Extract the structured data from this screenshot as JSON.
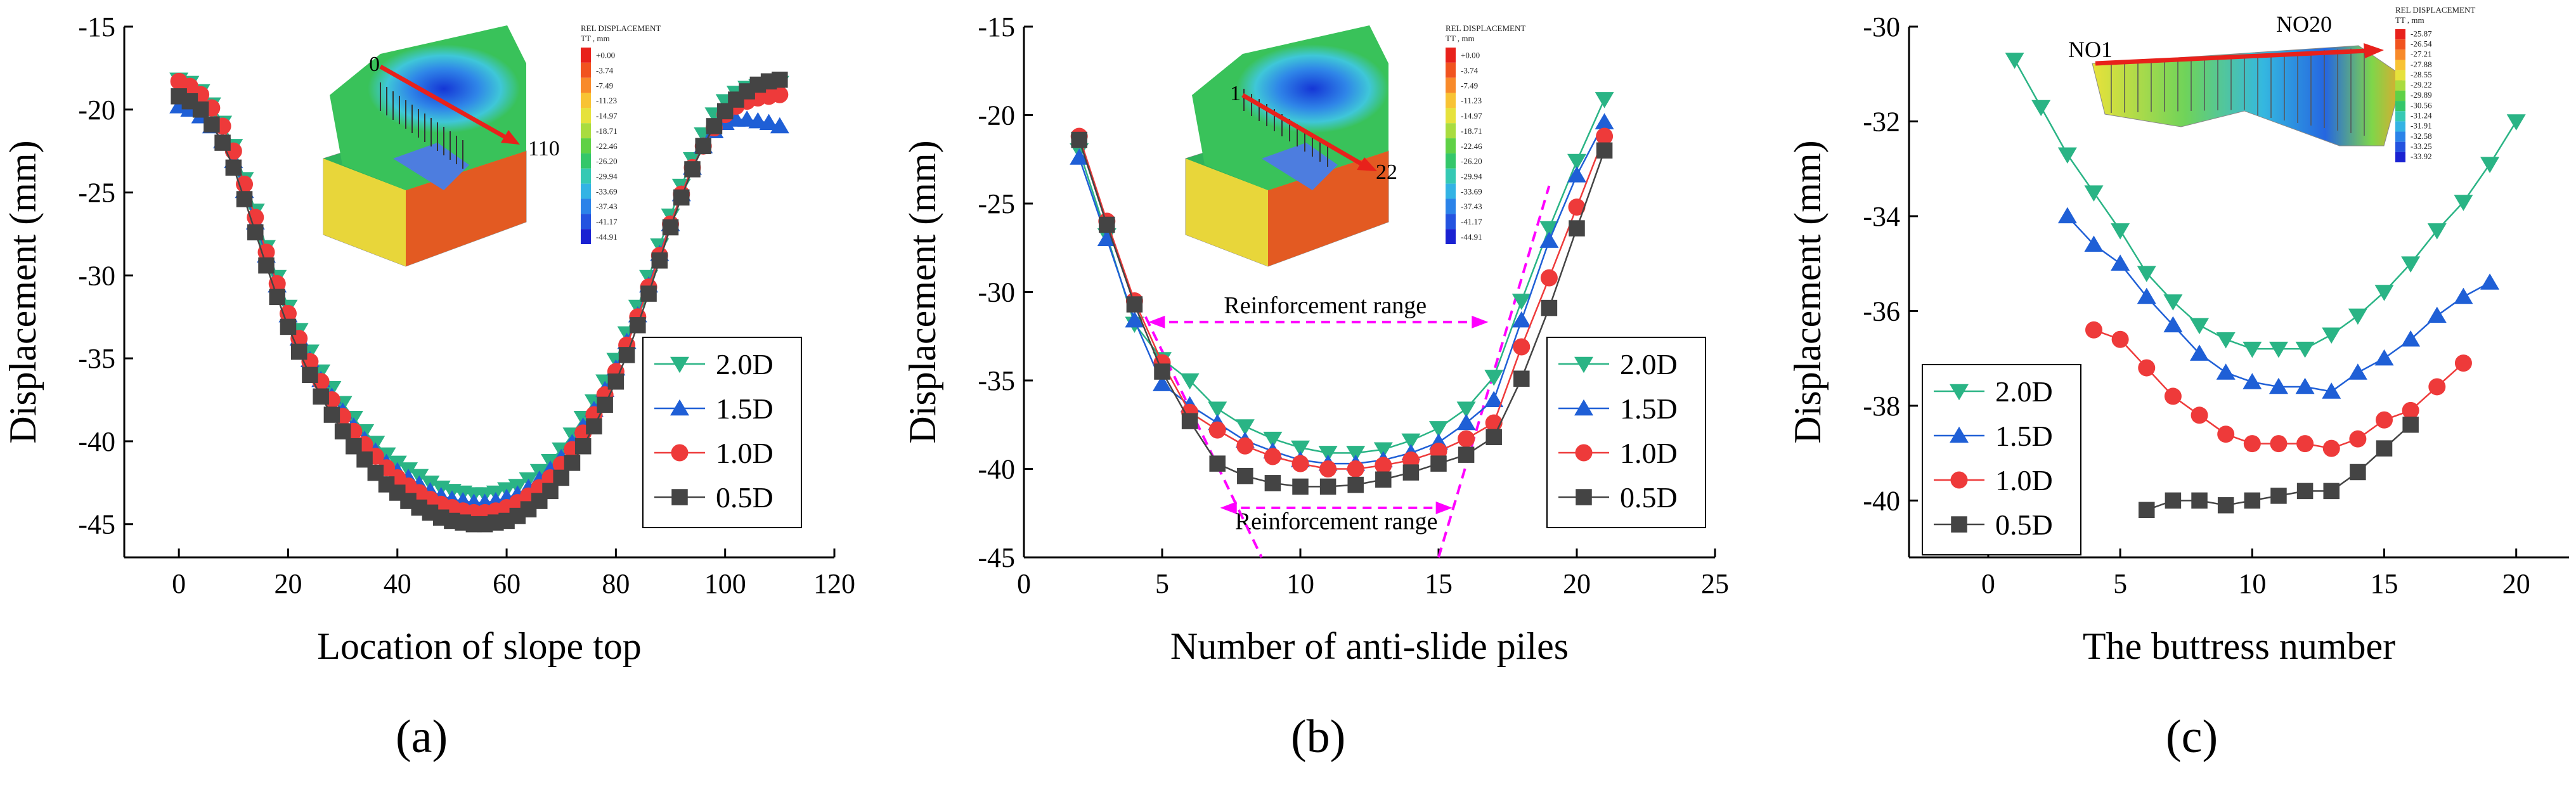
{
  "colors": {
    "s20": "#2ab485",
    "s15": "#1f5fd6",
    "s10": "#ee3a3a",
    "s05": "#444444",
    "magenta": "#ff00ff",
    "arrow": "#e8211b"
  },
  "chart_data": [
    {
      "type": "line",
      "panel": "a",
      "caption": "(a)",
      "title": "",
      "xlabel": "Location of slope top",
      "ylabel": "Displacement (mm)",
      "xlim": [
        -10,
        120
      ],
      "ylim": [
        -47,
        -15
      ],
      "xticks": [
        0,
        20,
        40,
        60,
        80,
        100,
        120
      ],
      "yticks": [
        -15,
        -20,
        -25,
        -30,
        -35,
        -40,
        -45
      ],
      "legend_position": "right",
      "inset_labels": [
        "0",
        "110"
      ],
      "colorbar": {
        "title": "REL DISPLACEMENT",
        "subtitle": "TT , mm",
        "values": [
          "+0.00",
          "-3.74",
          "-7.49",
          "-11.23",
          "-14.97",
          "-18.71",
          "-22.46",
          "-26.20",
          "-29.94",
          "-33.69",
          "-37.43",
          "-41.17",
          "-44.91"
        ]
      },
      "series": [
        {
          "name": "2.0D",
          "marker": "tri-down",
          "color": "#2ab485",
          "x": [
            0,
            2,
            4,
            6,
            8,
            10,
            12,
            14,
            16,
            18,
            20,
            22,
            24,
            26,
            28,
            30,
            32,
            34,
            36,
            38,
            40,
            42,
            44,
            46,
            48,
            50,
            52,
            54,
            56,
            58,
            60,
            62,
            64,
            66,
            68,
            70,
            72,
            74,
            76,
            78,
            80,
            82,
            84,
            86,
            88,
            90,
            92,
            94,
            96,
            98,
            100,
            102,
            104,
            106,
            108,
            110
          ],
          "values": [
            -18.2,
            -18.4,
            -18.9,
            -19.7,
            -20.8,
            -22.2,
            -24.2,
            -26.1,
            -28.3,
            -30.1,
            -31.9,
            -33.3,
            -34.6,
            -35.8,
            -36.8,
            -37.7,
            -38.6,
            -39.4,
            -40.1,
            -40.8,
            -41.3,
            -41.7,
            -42.1,
            -42.5,
            -42.8,
            -43.0,
            -43.1,
            -43.2,
            -43.2,
            -43.1,
            -42.9,
            -42.7,
            -42.3,
            -41.8,
            -41.2,
            -40.5,
            -39.6,
            -38.6,
            -37.6,
            -36.4,
            -35.1,
            -33.5,
            -31.9,
            -30.1,
            -28.2,
            -26.4,
            -24.6,
            -23.0,
            -21.5,
            -20.3,
            -19.5,
            -19.0,
            -18.7,
            -18.6,
            -18.5,
            -18.4
          ]
        },
        {
          "name": "1.5D",
          "marker": "tri-up",
          "color": "#1f5fd6",
          "x": [
            0,
            2,
            4,
            6,
            8,
            10,
            12,
            14,
            16,
            18,
            20,
            22,
            24,
            26,
            28,
            30,
            32,
            34,
            36,
            38,
            40,
            42,
            44,
            46,
            48,
            50,
            52,
            54,
            56,
            58,
            60,
            62,
            64,
            66,
            68,
            70,
            72,
            74,
            76,
            78,
            80,
            82,
            84,
            86,
            88,
            90,
            92,
            94,
            96,
            98,
            100,
            102,
            104,
            106,
            108,
            110
          ],
          "values": [
            -19.8,
            -20.0,
            -20.4,
            -21.0,
            -21.9,
            -23.1,
            -24.9,
            -26.8,
            -28.8,
            -30.6,
            -32.4,
            -33.8,
            -35.1,
            -36.3,
            -37.3,
            -38.2,
            -39.1,
            -39.9,
            -40.6,
            -41.3,
            -41.8,
            -42.2,
            -42.6,
            -43.0,
            -43.3,
            -43.5,
            -43.6,
            -43.7,
            -43.7,
            -43.6,
            -43.4,
            -43.2,
            -42.8,
            -42.3,
            -41.7,
            -41.0,
            -40.1,
            -39.1,
            -38.1,
            -36.9,
            -35.6,
            -34.0,
            -32.4,
            -30.6,
            -28.7,
            -26.9,
            -25.1,
            -23.5,
            -22.2,
            -21.3,
            -20.8,
            -20.6,
            -20.6,
            -20.7,
            -20.8,
            -21.0
          ]
        },
        {
          "name": "1.0D",
          "marker": "circle",
          "color": "#ee3a3a",
          "x": [
            0,
            2,
            4,
            6,
            8,
            10,
            12,
            14,
            16,
            18,
            20,
            22,
            24,
            26,
            28,
            30,
            32,
            34,
            36,
            38,
            40,
            42,
            44,
            46,
            48,
            50,
            52,
            54,
            56,
            58,
            60,
            62,
            64,
            66,
            68,
            70,
            72,
            74,
            76,
            78,
            80,
            82,
            84,
            86,
            88,
            90,
            92,
            94,
            96,
            98,
            100,
            102,
            104,
            106,
            108,
            110
          ],
          "values": [
            -18.3,
            -18.6,
            -19.1,
            -19.9,
            -21.0,
            -22.5,
            -24.5,
            -26.5,
            -28.6,
            -30.5,
            -32.3,
            -33.8,
            -35.2,
            -36.4,
            -37.5,
            -38.5,
            -39.4,
            -40.2,
            -40.9,
            -41.6,
            -42.2,
            -42.7,
            -43.1,
            -43.5,
            -43.8,
            -44.0,
            -44.2,
            -44.3,
            -44.3,
            -44.2,
            -44.0,
            -43.7,
            -43.3,
            -42.8,
            -42.2,
            -41.4,
            -40.5,
            -39.5,
            -38.4,
            -37.2,
            -35.8,
            -34.2,
            -32.5,
            -30.7,
            -28.8,
            -26.9,
            -25.1,
            -23.5,
            -22.2,
            -21.1,
            -20.3,
            -19.8,
            -19.5,
            -19.3,
            -19.2,
            -19.1
          ]
        },
        {
          "name": "0.5D",
          "marker": "square",
          "color": "#444444",
          "x": [
            0,
            2,
            4,
            6,
            8,
            10,
            12,
            14,
            16,
            18,
            20,
            22,
            24,
            26,
            28,
            30,
            32,
            34,
            36,
            38,
            40,
            42,
            44,
            46,
            48,
            50,
            52,
            54,
            56,
            58,
            60,
            62,
            64,
            66,
            68,
            70,
            72,
            74,
            76,
            78,
            80,
            82,
            84,
            86,
            88,
            90,
            92,
            94,
            96,
            98,
            100,
            102,
            104,
            106,
            108,
            110
          ],
          "values": [
            -19.2,
            -19.5,
            -20.0,
            -20.9,
            -22.0,
            -23.5,
            -25.4,
            -27.4,
            -29.4,
            -31.3,
            -33.1,
            -34.6,
            -36.0,
            -37.3,
            -38.4,
            -39.4,
            -40.3,
            -41.1,
            -41.9,
            -42.6,
            -43.1,
            -43.6,
            -44.0,
            -44.3,
            -44.6,
            -44.8,
            -44.9,
            -45.0,
            -45.0,
            -44.9,
            -44.8,
            -44.5,
            -44.1,
            -43.6,
            -43.0,
            -42.2,
            -41.3,
            -40.3,
            -39.1,
            -37.8,
            -36.4,
            -34.8,
            -33.0,
            -31.1,
            -29.1,
            -27.1,
            -25.3,
            -23.6,
            -22.2,
            -21.0,
            -20.1,
            -19.4,
            -18.9,
            -18.5,
            -18.3,
            -18.2
          ]
        }
      ]
    },
    {
      "type": "line",
      "panel": "b",
      "caption": "(b)",
      "title": "",
      "xlabel": "Number of anti-slide piles",
      "ylabel": "Displacement (mm)",
      "xlim": [
        0,
        25
      ],
      "ylim": [
        -45,
        -15
      ],
      "xticks": [
        0,
        5,
        10,
        15,
        20,
        25
      ],
      "yticks": [
        -15,
        -20,
        -25,
        -30,
        -35,
        -40,
        -45
      ],
      "legend_position": "right",
      "inset_labels": [
        "1",
        "22"
      ],
      "annotations": [
        "Reinforcement range",
        "Reinforcement range"
      ],
      "colorbar": {
        "title": "REL DISPLACEMENT",
        "subtitle": "TT , mm",
        "values": [
          "+0.00",
          "-3.74",
          "-7.49",
          "-11.23",
          "-14.97",
          "-18.71",
          "-22.46",
          "-26.20",
          "-29.94",
          "-33.69",
          "-37.43",
          "-41.17",
          "-44.91"
        ]
      },
      "series": [
        {
          "name": "2.0D",
          "marker": "tri-down",
          "color": "#2ab485",
          "x": [
            2,
            3,
            4,
            5,
            6,
            7,
            8,
            9,
            10,
            11,
            12,
            13,
            14,
            15,
            16,
            17,
            18,
            19,
            20,
            21
          ],
          "values": [
            -22.0,
            -26.8,
            -31.8,
            -33.8,
            -35.0,
            -36.6,
            -37.6,
            -38.3,
            -38.8,
            -39.1,
            -39.1,
            -38.9,
            -38.4,
            -37.7,
            -36.6,
            -34.8,
            -30.5,
            -26.4,
            -22.6,
            -19.1
          ]
        },
        {
          "name": "1.5D",
          "marker": "tri-up",
          "color": "#1f5fd6",
          "x": [
            2,
            3,
            4,
            5,
            6,
            7,
            8,
            9,
            10,
            11,
            12,
            13,
            14,
            15,
            16,
            17,
            18,
            19,
            20,
            21
          ],
          "values": [
            -22.4,
            -27.0,
            -31.6,
            -35.2,
            -36.4,
            -37.4,
            -38.4,
            -39.0,
            -39.5,
            -39.7,
            -39.7,
            -39.5,
            -39.1,
            -38.5,
            -37.4,
            -36.1,
            -31.6,
            -27.1,
            -23.4,
            -20.4
          ]
        },
        {
          "name": "1.0D",
          "marker": "circle",
          "color": "#ee3a3a",
          "x": [
            2,
            3,
            4,
            5,
            6,
            7,
            8,
            9,
            10,
            11,
            12,
            13,
            14,
            15,
            16,
            17,
            18,
            19,
            20,
            21
          ],
          "values": [
            -21.2,
            -26.0,
            -30.5,
            -34.0,
            -36.8,
            -37.8,
            -38.7,
            -39.3,
            -39.7,
            -40.0,
            -40.0,
            -39.8,
            -39.5,
            -39.0,
            -38.3,
            -37.4,
            -33.1,
            -29.2,
            -25.2,
            -21.2
          ]
        },
        {
          "name": "0.5D",
          "marker": "square",
          "color": "#444444",
          "x": [
            2,
            3,
            4,
            5,
            6,
            7,
            8,
            9,
            10,
            11,
            12,
            13,
            14,
            15,
            16,
            17,
            18,
            19,
            20,
            21
          ],
          "values": [
            -21.4,
            -26.2,
            -30.7,
            -34.5,
            -37.3,
            -39.7,
            -40.4,
            -40.8,
            -41.0,
            -41.0,
            -40.9,
            -40.6,
            -40.2,
            -39.7,
            -39.2,
            -38.2,
            -34.9,
            -30.9,
            -26.4,
            -22.0
          ]
        }
      ]
    },
    {
      "type": "line",
      "panel": "c",
      "caption": "(c)",
      "title": "",
      "xlabel": "The buttress number",
      "ylabel": "Displacement (mm)",
      "xlim": [
        -3,
        22
      ],
      "ylim": [
        -41.2,
        -30
      ],
      "xticks": [
        0,
        5,
        10,
        15,
        20
      ],
      "yticks": [
        -30,
        -32,
        -34,
        -36,
        -38,
        -40
      ],
      "legend_position": "bottom-left",
      "inset_labels": [
        "NO1",
        "NO20"
      ],
      "colorbar": {
        "title": "REL DISPLACEMENT",
        "subtitle": "TT , mm",
        "values": [
          "-25.87",
          "-26.54",
          "-27.21",
          "-27.88",
          "-28.55",
          "-29.22",
          "-29.89",
          "-30.56",
          "-31.24",
          "-31.91",
          "-32.58",
          "-33.25",
          "-33.92"
        ]
      },
      "series": [
        {
          "name": "2.0D",
          "marker": "tri-down",
          "color": "#2ab485",
          "x": [
            1,
            2,
            3,
            4,
            5,
            6,
            7,
            8,
            9,
            10,
            11,
            12,
            13,
            14,
            15,
            16,
            17,
            18,
            19,
            20
          ],
          "values": [
            -30.7,
            -31.7,
            -32.7,
            -33.5,
            -34.3,
            -35.2,
            -35.8,
            -36.3,
            -36.6,
            -36.8,
            -36.8,
            -36.8,
            -36.5,
            -36.1,
            -35.6,
            -35.0,
            -34.3,
            -33.7,
            -32.9,
            -32.0
          ]
        },
        {
          "name": "1.5D",
          "marker": "tri-up",
          "color": "#1f5fd6",
          "x": [
            3,
            4,
            5,
            6,
            7,
            8,
            9,
            10,
            11,
            12,
            13,
            14,
            15,
            16,
            17,
            18,
            19
          ],
          "values": [
            -34.0,
            -34.6,
            -35.0,
            -35.7,
            -36.3,
            -36.9,
            -37.3,
            -37.5,
            -37.6,
            -37.6,
            -37.7,
            -37.3,
            -37.0,
            -36.6,
            -36.1,
            -35.7,
            -35.4
          ]
        },
        {
          "name": "1.0D",
          "marker": "circle",
          "color": "#ee3a3a",
          "x": [
            4,
            5,
            6,
            7,
            8,
            9,
            10,
            11,
            12,
            13,
            14,
            15,
            16,
            17,
            18
          ],
          "values": [
            -36.4,
            -36.6,
            -37.2,
            -37.8,
            -38.2,
            -38.6,
            -38.8,
            -38.8,
            -38.8,
            -38.9,
            -38.7,
            -38.3,
            -38.1,
            -37.6,
            -37.1
          ]
        },
        {
          "name": "0.5D",
          "marker": "square",
          "color": "#444444",
          "x": [
            6,
            7,
            8,
            9,
            10,
            11,
            12,
            13,
            14,
            15,
            16
          ],
          "values": [
            -40.2,
            -40.0,
            -40.0,
            -40.1,
            -40.0,
            -39.9,
            -39.8,
            -39.8,
            -39.4,
            -38.9,
            -38.4
          ]
        }
      ]
    }
  ]
}
